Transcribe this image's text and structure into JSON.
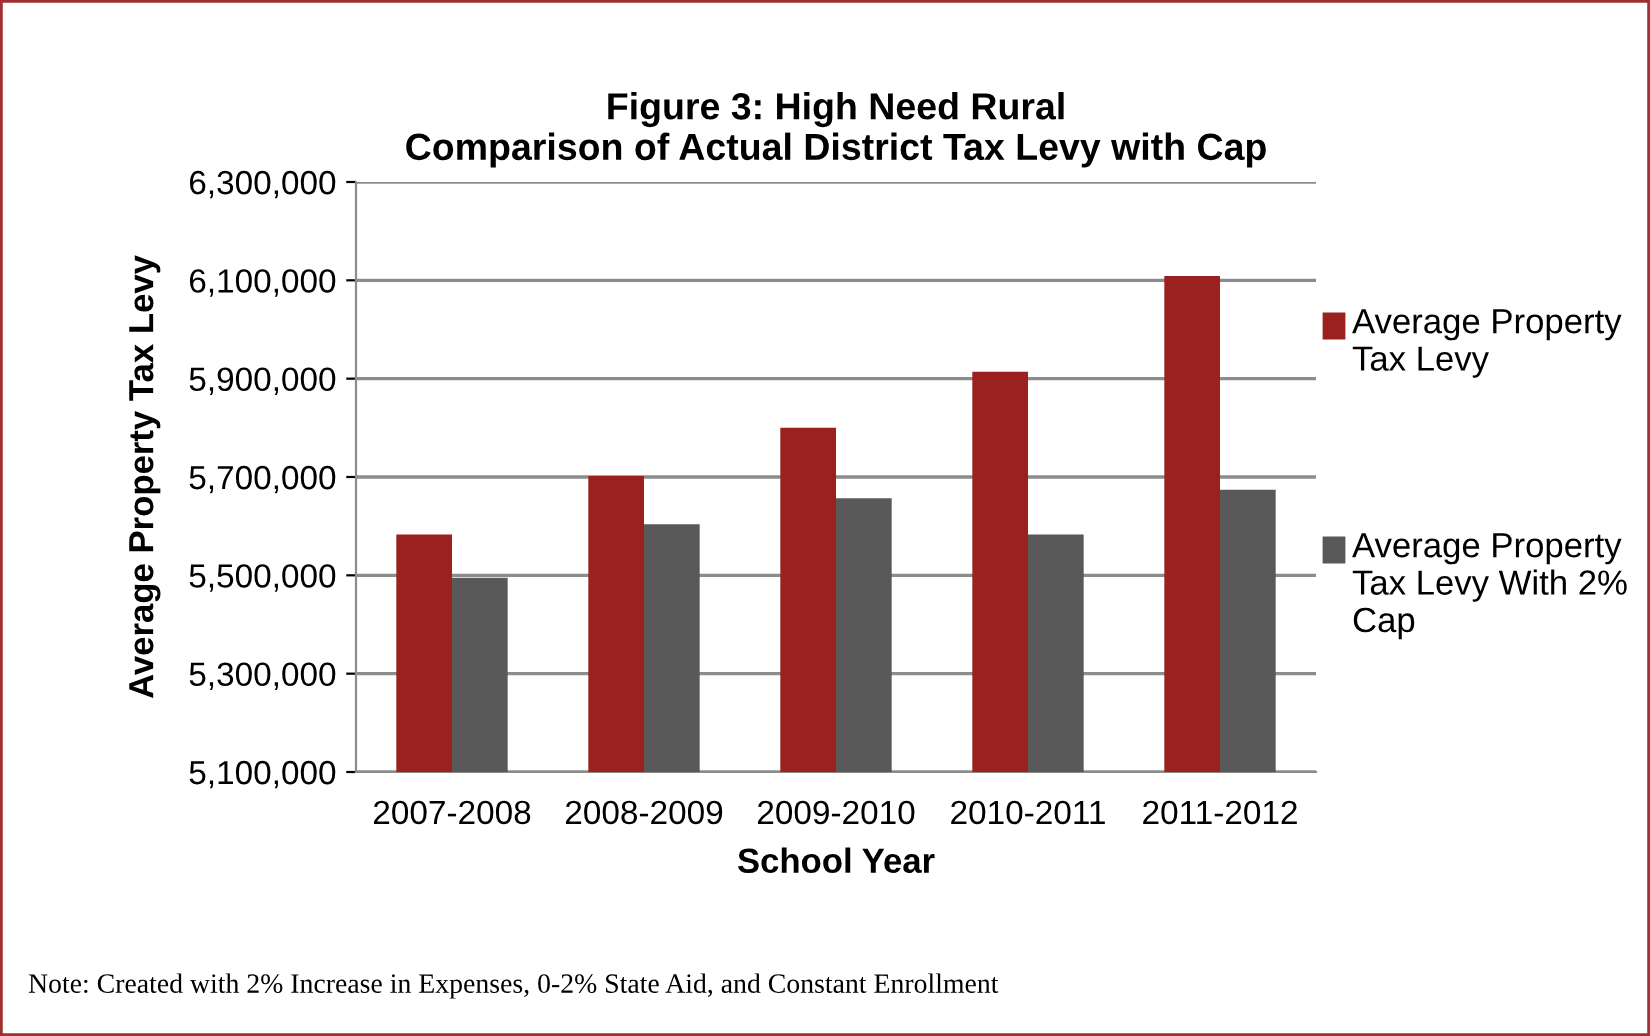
{
  "chart_data": {
    "type": "bar",
    "title": "Figure 3: High Need Rural\nComparison of Actual District Tax Levy with Cap",
    "xlabel": "School Year",
    "ylabel": "Average Property Tax Levy",
    "categories": [
      "2007-2008",
      "2008-2009",
      "2009-2010",
      "2010-2011",
      "2011-2012"
    ],
    "series": [
      {
        "name": "Average Property Tax Levy",
        "color": "#9b2020",
        "values": [
          5583000,
          5702000,
          5800000,
          5914000,
          6109000
        ]
      },
      {
        "name": "Average Property Tax Levy With 2% Cap",
        "color": "#595959",
        "values": [
          5495000,
          5604000,
          5657000,
          5583000,
          5674000
        ]
      }
    ],
    "ylim": [
      5100000,
      6300000
    ],
    "yticks": [
      {
        "value": 5100000,
        "label": "5,100,000"
      },
      {
        "value": 5300000,
        "label": "5,300,000"
      },
      {
        "value": 5500000,
        "label": "5,500,000"
      },
      {
        "value": 5700000,
        "label": "5,700,000"
      },
      {
        "value": 5900000,
        "label": "5,900,000"
      },
      {
        "value": 6100000,
        "label": "6,100,000"
      },
      {
        "value": 6300000,
        "label": "6,300,000"
      }
    ],
    "grid": "y",
    "legend": "right",
    "annotations": [
      "Note: Created with 2% Increase in Expenses, 0-2% State Aid, and Constant Enrollment"
    ]
  }
}
